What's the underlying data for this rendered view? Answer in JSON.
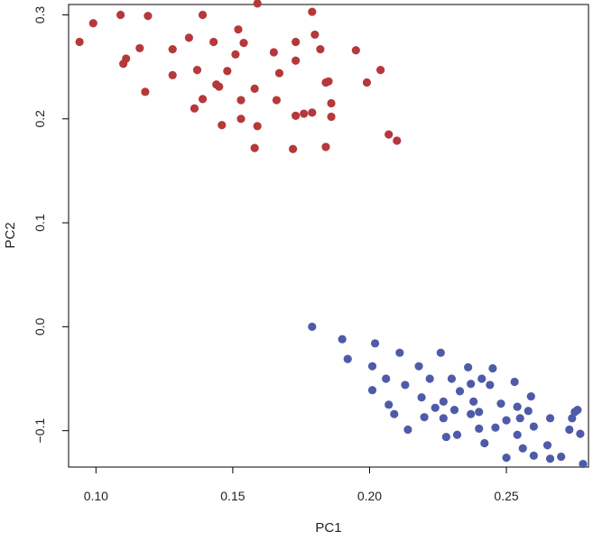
{
  "chart_data": {
    "type": "scatter",
    "title": "",
    "xlabel": "PC1",
    "ylabel": "PC2",
    "xlim": [
      0.09,
      0.28
    ],
    "ylim": [
      -0.135,
      0.31
    ],
    "xticks": [
      0.1,
      0.15,
      0.2,
      0.25
    ],
    "xtick_labels": [
      "0.10",
      "0.15",
      "0.20",
      "0.25"
    ],
    "yticks": [
      -0.1,
      0.0,
      0.1,
      0.2,
      0.3
    ],
    "ytick_labels": [
      "−0.1",
      "0.0",
      "0.1",
      "0.2",
      "0.3"
    ],
    "grid": false,
    "legend": "none",
    "series": [
      {
        "color": "#b5383a",
        "points": [
          [
            0.094,
            0.274
          ],
          [
            0.099,
            0.292
          ],
          [
            0.109,
            0.3
          ],
          [
            0.11,
            0.253
          ],
          [
            0.111,
            0.258
          ],
          [
            0.116,
            0.268
          ],
          [
            0.118,
            0.226
          ],
          [
            0.119,
            0.299
          ],
          [
            0.128,
            0.267
          ],
          [
            0.128,
            0.242
          ],
          [
            0.134,
            0.278
          ],
          [
            0.136,
            0.21
          ],
          [
            0.137,
            0.247
          ],
          [
            0.139,
            0.3
          ],
          [
            0.139,
            0.219
          ],
          [
            0.143,
            0.274
          ],
          [
            0.144,
            0.233
          ],
          [
            0.145,
            0.231
          ],
          [
            0.146,
            0.194
          ],
          [
            0.148,
            0.246
          ],
          [
            0.151,
            0.262
          ],
          [
            0.152,
            0.286
          ],
          [
            0.153,
            0.218
          ],
          [
            0.153,
            0.2
          ],
          [
            0.154,
            0.273
          ],
          [
            0.158,
            0.172
          ],
          [
            0.158,
            0.229
          ],
          [
            0.159,
            0.311
          ],
          [
            0.159,
            0.193
          ],
          [
            0.165,
            0.264
          ],
          [
            0.166,
            0.218
          ],
          [
            0.167,
            0.244
          ],
          [
            0.172,
            0.171
          ],
          [
            0.173,
            0.203
          ],
          [
            0.173,
            0.274
          ],
          [
            0.173,
            0.256
          ],
          [
            0.176,
            0.205
          ],
          [
            0.179,
            0.206
          ],
          [
            0.179,
            0.303
          ],
          [
            0.18,
            0.281
          ],
          [
            0.182,
            0.267
          ],
          [
            0.184,
            0.235
          ],
          [
            0.184,
            0.173
          ],
          [
            0.185,
            0.236
          ],
          [
            0.186,
            0.215
          ],
          [
            0.186,
            0.202
          ],
          [
            0.195,
            0.266
          ],
          [
            0.199,
            0.235
          ],
          [
            0.204,
            0.247
          ],
          [
            0.207,
            0.185
          ],
          [
            0.21,
            0.179
          ]
        ]
      },
      {
        "color": "#4e5ba8",
        "points": [
          [
            0.179,
            0.0
          ],
          [
            0.19,
            -0.012
          ],
          [
            0.192,
            -0.031
          ],
          [
            0.201,
            -0.038
          ],
          [
            0.201,
            -0.061
          ],
          [
            0.202,
            -0.016
          ],
          [
            0.206,
            -0.05
          ],
          [
            0.207,
            -0.075
          ],
          [
            0.209,
            -0.084
          ],
          [
            0.211,
            -0.025
          ],
          [
            0.213,
            -0.056
          ],
          [
            0.214,
            -0.099
          ],
          [
            0.218,
            -0.038
          ],
          [
            0.219,
            -0.068
          ],
          [
            0.22,
            -0.087
          ],
          [
            0.222,
            -0.05
          ],
          [
            0.224,
            -0.078
          ],
          [
            0.226,
            -0.025
          ],
          [
            0.227,
            -0.088
          ],
          [
            0.227,
            -0.072
          ],
          [
            0.228,
            -0.106
          ],
          [
            0.23,
            -0.05
          ],
          [
            0.231,
            -0.08
          ],
          [
            0.232,
            -0.104
          ],
          [
            0.233,
            -0.062
          ],
          [
            0.236,
            -0.039
          ],
          [
            0.237,
            -0.055
          ],
          [
            0.237,
            -0.084
          ],
          [
            0.238,
            -0.072
          ],
          [
            0.24,
            -0.082
          ],
          [
            0.24,
            -0.098
          ],
          [
            0.241,
            -0.05
          ],
          [
            0.242,
            -0.112
          ],
          [
            0.244,
            -0.056
          ],
          [
            0.245,
            -0.04
          ],
          [
            0.246,
            -0.097
          ],
          [
            0.248,
            -0.074
          ],
          [
            0.25,
            -0.126
          ],
          [
            0.25,
            -0.09
          ],
          [
            0.253,
            -0.053
          ],
          [
            0.254,
            -0.104
          ],
          [
            0.254,
            -0.077
          ],
          [
            0.255,
            -0.088
          ],
          [
            0.256,
            -0.117
          ],
          [
            0.258,
            -0.081
          ],
          [
            0.259,
            -0.067
          ],
          [
            0.26,
            -0.096
          ],
          [
            0.26,
            -0.124
          ],
          [
            0.265,
            -0.114
          ],
          [
            0.266,
            -0.088
          ],
          [
            0.266,
            -0.127
          ],
          [
            0.27,
            -0.125
          ],
          [
            0.273,
            -0.099
          ],
          [
            0.274,
            -0.088
          ],
          [
            0.275,
            -0.082
          ],
          [
            0.276,
            -0.08
          ],
          [
            0.277,
            -0.103
          ],
          [
            0.278,
            -0.132
          ]
        ]
      }
    ]
  }
}
